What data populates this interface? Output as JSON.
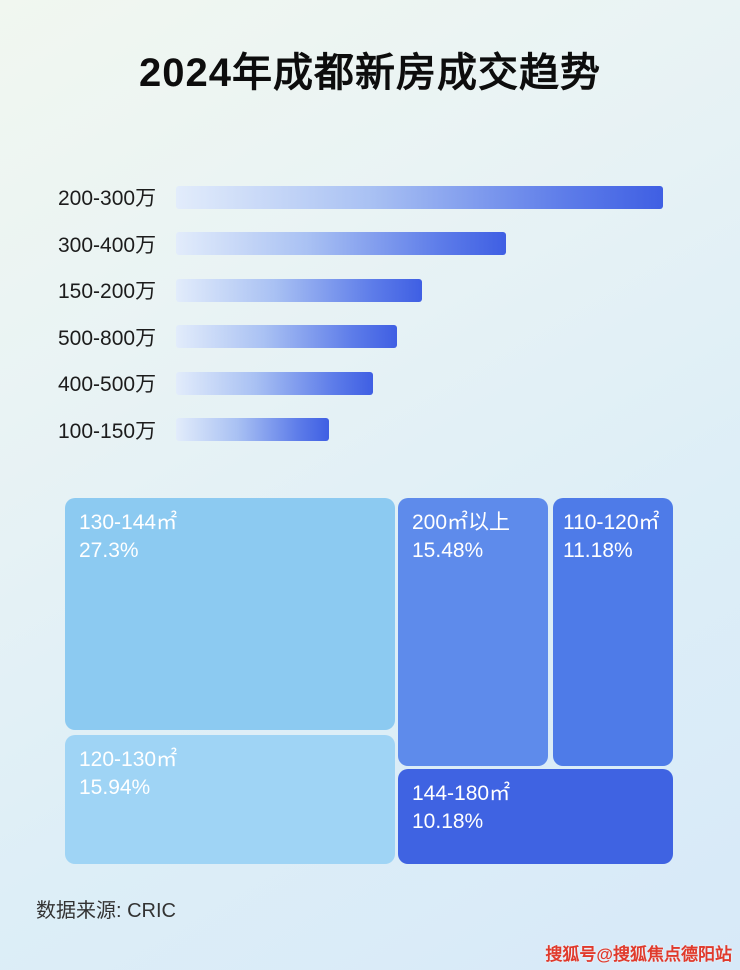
{
  "page": {
    "title": "2024年成都新房成交趋势",
    "source_note": "数据来源: CRIC",
    "watermark": "搜狐号@搜狐焦点德阳站"
  },
  "colors": {
    "bar_gradient_start": "#e2ecfb",
    "bar_gradient_end": "#3f5fe3",
    "treemap_130_144": "#8ccaf1",
    "treemap_120_130": "#9fd4f5",
    "treemap_200_plus": "#5e8beb",
    "treemap_110_120": "#4e7be8",
    "treemap_144_180": "#3f63e2",
    "watermark_red": "#e03a2c",
    "background_top": "#f1f7f0",
    "background_bottom": "#d7e9f8"
  },
  "chart_data": [
    {
      "type": "bar",
      "orientation": "horizontal",
      "title": "2024年成都新房成交趋势",
      "categories": [
        "200-300万",
        "300-400万",
        "150-200万",
        "500-800万",
        "400-500万",
        "100-150万"
      ],
      "values": [
        99,
        67,
        50,
        45,
        40,
        31
      ],
      "value_note": "no numeric axis shown; values are estimated relative bar lengths (% of track)",
      "xlabel": "",
      "ylabel": "",
      "legend": "none",
      "grid": false
    },
    {
      "type": "treemap",
      "items": [
        {
          "label": "130-144㎡",
          "percent": "27.3%"
        },
        {
          "label": "120-130㎡",
          "percent": "15.94%"
        },
        {
          "label": "200㎡以上",
          "percent": "15.48%"
        },
        {
          "label": "110-120㎡",
          "percent": "11.18%"
        },
        {
          "label": "144-180㎡",
          "percent": "10.18%"
        }
      ]
    }
  ]
}
